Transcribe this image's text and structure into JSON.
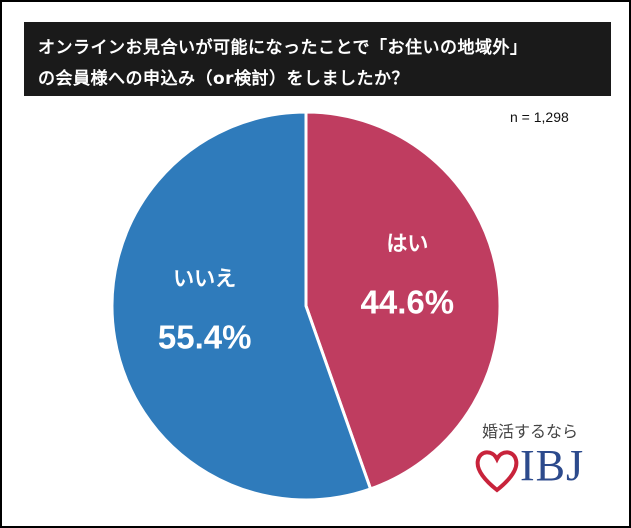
{
  "title": {
    "line1": "オンラインお見合いが可能になったことで「お住いの地域外」",
    "line2": "の会員様への申込み（or検討）をしましたか？"
  },
  "sample_size": "n = 1,298",
  "chart_data": {
    "type": "pie",
    "slices": [
      {
        "label": "はい",
        "value": 44.6,
        "display": "44.6%",
        "color": "#bf3d60"
      },
      {
        "label": "いいえ",
        "value": 55.4,
        "display": "55.4%",
        "color": "#2f7bbb"
      }
    ],
    "start": "12 o'clock",
    "direction": "clockwise",
    "slice_border_color": "#ffffff"
  },
  "logo": {
    "tagline": "婚活するなら",
    "brand": "IBJ",
    "heart_color": "#c8233b",
    "brand_color": "#2c4a8c"
  }
}
